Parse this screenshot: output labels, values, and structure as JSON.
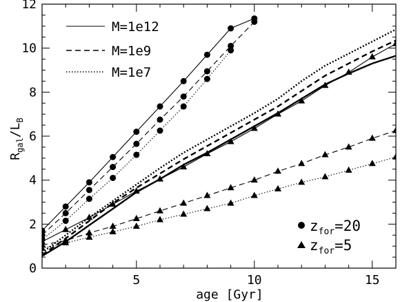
{
  "chart_data": {
    "type": "line",
    "title": "",
    "xlabel": "age [Gyr]",
    "ylabel": {
      "main": "R",
      "sub1": "gal",
      "mid": "/L",
      "sub2": "B"
    },
    "xlim": [
      1,
      16
    ],
    "ylim": [
      0,
      12
    ],
    "xticks": [
      5,
      10,
      15
    ],
    "yticks": [
      0,
      2,
      4,
      6,
      8,
      10,
      12
    ],
    "grid": false,
    "legend": {
      "placement": "top-left (line styles) and bottom-right (markers)",
      "lines": [
        {
          "label": "M=1e12",
          "style": "solid"
        },
        {
          "label": "M=1e9",
          "style": "dashed"
        },
        {
          "label": "M=1e7",
          "style": "dotted"
        }
      ],
      "markers": [
        {
          "marker": "circle",
          "label_main": "z",
          "label_sub": "for",
          "label_tail": "=20"
        },
        {
          "marker": "triangle",
          "label_main": "z",
          "label_sub": "for",
          "label_tail": "=5"
        }
      ]
    },
    "series": [
      {
        "zfor": "20",
        "mass": "1e12",
        "style": "solid",
        "marker": "circle",
        "width": "thin",
        "x": [
          1,
          2,
          3,
          4,
          5,
          6,
          7,
          8,
          9,
          10
        ],
        "y": [
          1.7,
          2.8,
          3.9,
          5.05,
          6.2,
          7.35,
          8.5,
          9.7,
          10.9,
          11.35
        ]
      },
      {
        "zfor": "20",
        "mass": "1e9",
        "style": "dashed",
        "marker": "circle",
        "width": "thin",
        "x": [
          1,
          2,
          3,
          4,
          5,
          6,
          7,
          8,
          9,
          10
        ],
        "y": [
          1.5,
          2.5,
          3.55,
          4.6,
          5.65,
          6.75,
          7.8,
          8.95,
          10.1,
          11.2
        ]
      },
      {
        "zfor": "20",
        "mass": "1e7",
        "style": "dotted",
        "marker": "circle",
        "width": "thin",
        "x": [
          1,
          2,
          3,
          4,
          5,
          6,
          7,
          8,
          9
        ],
        "y": [
          1.3,
          2.15,
          3.15,
          4.1,
          5.15,
          6.25,
          7.35,
          8.6,
          9.9
        ]
      },
      {
        "zfor": "5",
        "mass": "1e12",
        "style": "solid",
        "marker": "triangle",
        "width": "thin",
        "x": [
          1,
          2,
          3,
          4,
          5,
          6,
          7,
          8,
          9,
          10,
          11,
          12,
          13,
          14,
          15,
          16
        ],
        "y": [
          1.2,
          1.75,
          2.3,
          2.9,
          3.5,
          4.05,
          4.6,
          5.2,
          5.75,
          6.35,
          7.0,
          7.6,
          8.3,
          8.9,
          9.6,
          10.2
        ]
      },
      {
        "zfor": "5",
        "mass": "1e9",
        "style": "dashed",
        "marker": "triangle",
        "width": "thin",
        "x": [
          1,
          2,
          3,
          4,
          5,
          6,
          7,
          8,
          9,
          10,
          11,
          12,
          13,
          14,
          15,
          16
        ],
        "y": [
          1.05,
          1.25,
          1.6,
          1.9,
          2.25,
          2.6,
          2.95,
          3.3,
          3.65,
          4.0,
          4.4,
          4.75,
          5.15,
          5.5,
          5.9,
          6.25
        ]
      },
      {
        "zfor": "5",
        "mass": "1e7",
        "style": "dotted",
        "marker": "triangle",
        "width": "thin",
        "x": [
          1,
          2,
          3,
          4,
          5,
          6,
          7,
          8,
          9,
          10,
          11,
          12,
          13,
          14,
          15,
          16
        ],
        "y": [
          0.9,
          1.15,
          1.4,
          1.65,
          1.9,
          2.2,
          2.45,
          2.7,
          2.95,
          3.3,
          3.6,
          3.9,
          4.15,
          4.45,
          4.75,
          5.05
        ]
      },
      {
        "zfor": "",
        "mass": "1e12",
        "style": "solid",
        "marker": "none",
        "width": "thick",
        "x": [
          1,
          2,
          3,
          4,
          5,
          6,
          7,
          8,
          9,
          10,
          11,
          12,
          13,
          14,
          15,
          16
        ],
        "y": [
          0.55,
          1.2,
          1.95,
          2.7,
          3.45,
          4.05,
          4.7,
          5.25,
          5.85,
          6.45,
          7.05,
          7.7,
          8.35,
          8.85,
          9.3,
          9.65
        ]
      },
      {
        "zfor": "",
        "mass": "1e9",
        "style": "dashed",
        "marker": "none",
        "width": "thick",
        "x": [
          1,
          2,
          3,
          4,
          5,
          6,
          7,
          8,
          9,
          10,
          11,
          12,
          13,
          14,
          15,
          16
        ],
        "y": [
          0.6,
          1.35,
          2.15,
          2.95,
          3.65,
          4.3,
          4.95,
          5.55,
          6.15,
          6.75,
          7.35,
          8.05,
          8.75,
          9.3,
          9.85,
          10.35
        ]
      },
      {
        "zfor": "",
        "mass": "1e7",
        "style": "dotted",
        "marker": "none",
        "width": "thick",
        "x": [
          1,
          2,
          3,
          4,
          5,
          6,
          7,
          8,
          9,
          10,
          11,
          12,
          13,
          14,
          15,
          16
        ],
        "y": [
          0.7,
          1.5,
          2.3,
          3.05,
          3.8,
          4.55,
          5.25,
          5.85,
          6.45,
          7.05,
          7.7,
          8.5,
          9.2,
          9.75,
          10.3,
          10.85
        ]
      }
    ]
  }
}
